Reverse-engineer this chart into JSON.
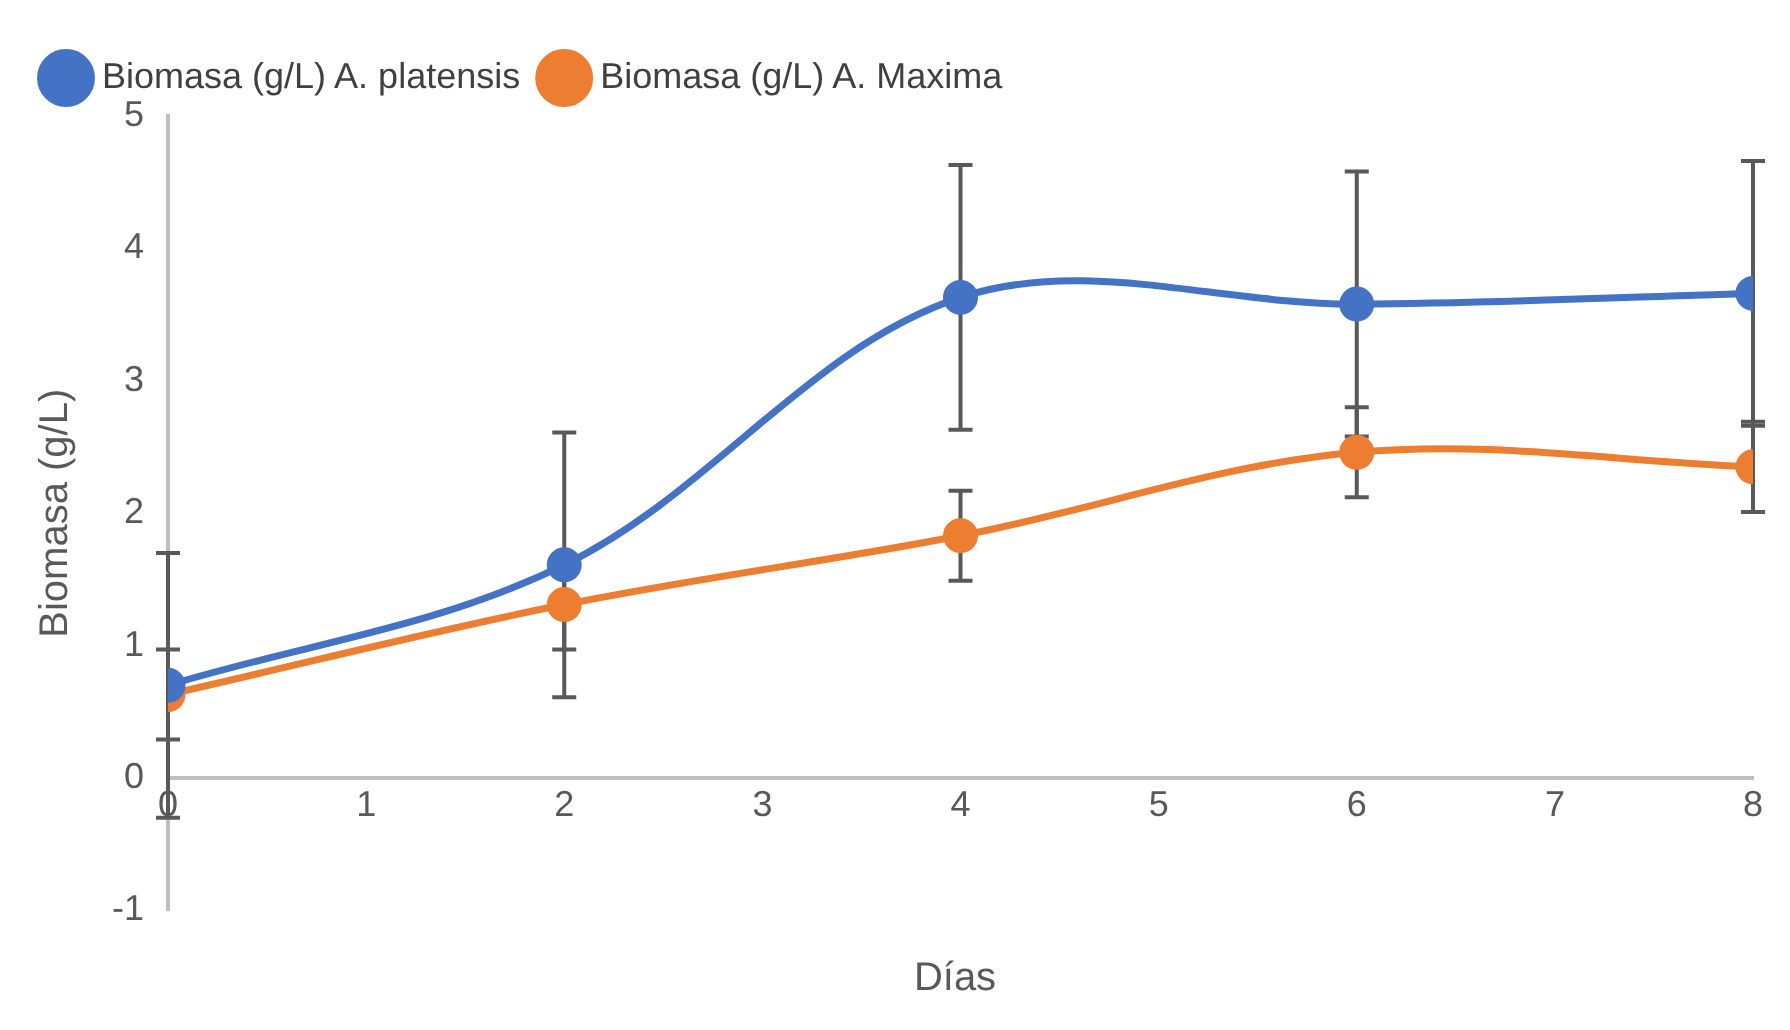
{
  "chart_data": {
    "type": "line",
    "xlabel": "Días",
    "ylabel": "Biomasa (g/L)",
    "x": [
      0,
      2,
      4,
      6,
      8
    ],
    "series": [
      {
        "name": "Biomasa (g/L) A. platensis",
        "color": "#4472c4",
        "values": [
          0.7,
          1.61,
          3.63,
          3.58,
          3.66
        ],
        "errors": [
          1,
          1,
          1,
          1,
          1
        ]
      },
      {
        "name": "Biomasa (g/L) A. Maxima",
        "color": "#ed7d31",
        "values": [
          0.63,
          1.31,
          1.83,
          2.46,
          2.35
        ],
        "errors": [
          0.34,
          0.34,
          0.34,
          0.34,
          0.34
        ]
      }
    ],
    "xlim": [
      0,
      8
    ],
    "xticks": [
      0,
      1,
      2,
      3,
      4,
      5,
      6,
      7,
      8
    ],
    "ylim": [
      -1,
      5
    ],
    "yticks": [
      -1,
      0,
      1,
      2,
      3,
      4,
      5
    ],
    "grid": false,
    "legend": "top left",
    "marker": "circle",
    "line_style": "solid"
  }
}
